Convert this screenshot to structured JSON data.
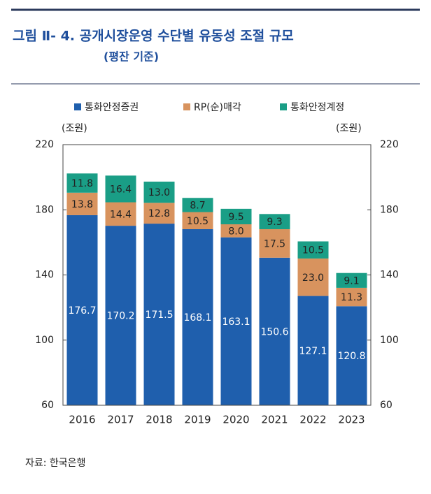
{
  "chart_data": {
    "type": "stacked_bar",
    "title": "그림 Ⅱ- 4. 공개시장운영 수단별 유동성 조절 규모",
    "subtitle": "(평잔 기준)",
    "y_unit": "(조원)",
    "y2_unit": "(조원)",
    "source": "자료: 한국은행",
    "categories": [
      "2016",
      "2017",
      "2018",
      "2019",
      "2020",
      "2021",
      "2022",
      "2023"
    ],
    "series": [
      {
        "name": "통화안정증권",
        "color": "#1f5fad",
        "values": [
          176.7,
          170.2,
          171.5,
          168.1,
          163.1,
          150.6,
          127.1,
          120.8
        ],
        "value_labels": [
          "176.7",
          "170.2",
          "171.5",
          "168.1",
          "163.1",
          "150.6",
          "127.1",
          "120.8"
        ]
      },
      {
        "name": "RP(순)매각",
        "color": "#d8935e",
        "values": [
          13.8,
          14.4,
          12.8,
          10.5,
          8,
          17.5,
          23,
          11.3
        ],
        "value_labels": [
          "13.8",
          "14.4",
          "12.8",
          "10.5",
          "8.0",
          "17.5",
          "23.0",
          "11.3"
        ]
      },
      {
        "name": "통화안정계정",
        "color": "#1a9e86",
        "values": [
          11.8,
          16.4,
          13,
          8.7,
          9.5,
          9.3,
          10.5,
          9.1
        ],
        "value_labels": [
          "11.8",
          "16.4",
          "13.0",
          "8.7",
          "9.5",
          "9.3",
          "10.5",
          "9.1"
        ]
      }
    ],
    "ylim": [
      60,
      220
    ],
    "yticks": [
      60,
      100,
      140,
      180,
      220
    ],
    "y2lim": [
      60,
      220
    ],
    "y2ticks": [
      60,
      100,
      140,
      180,
      220
    ]
  }
}
